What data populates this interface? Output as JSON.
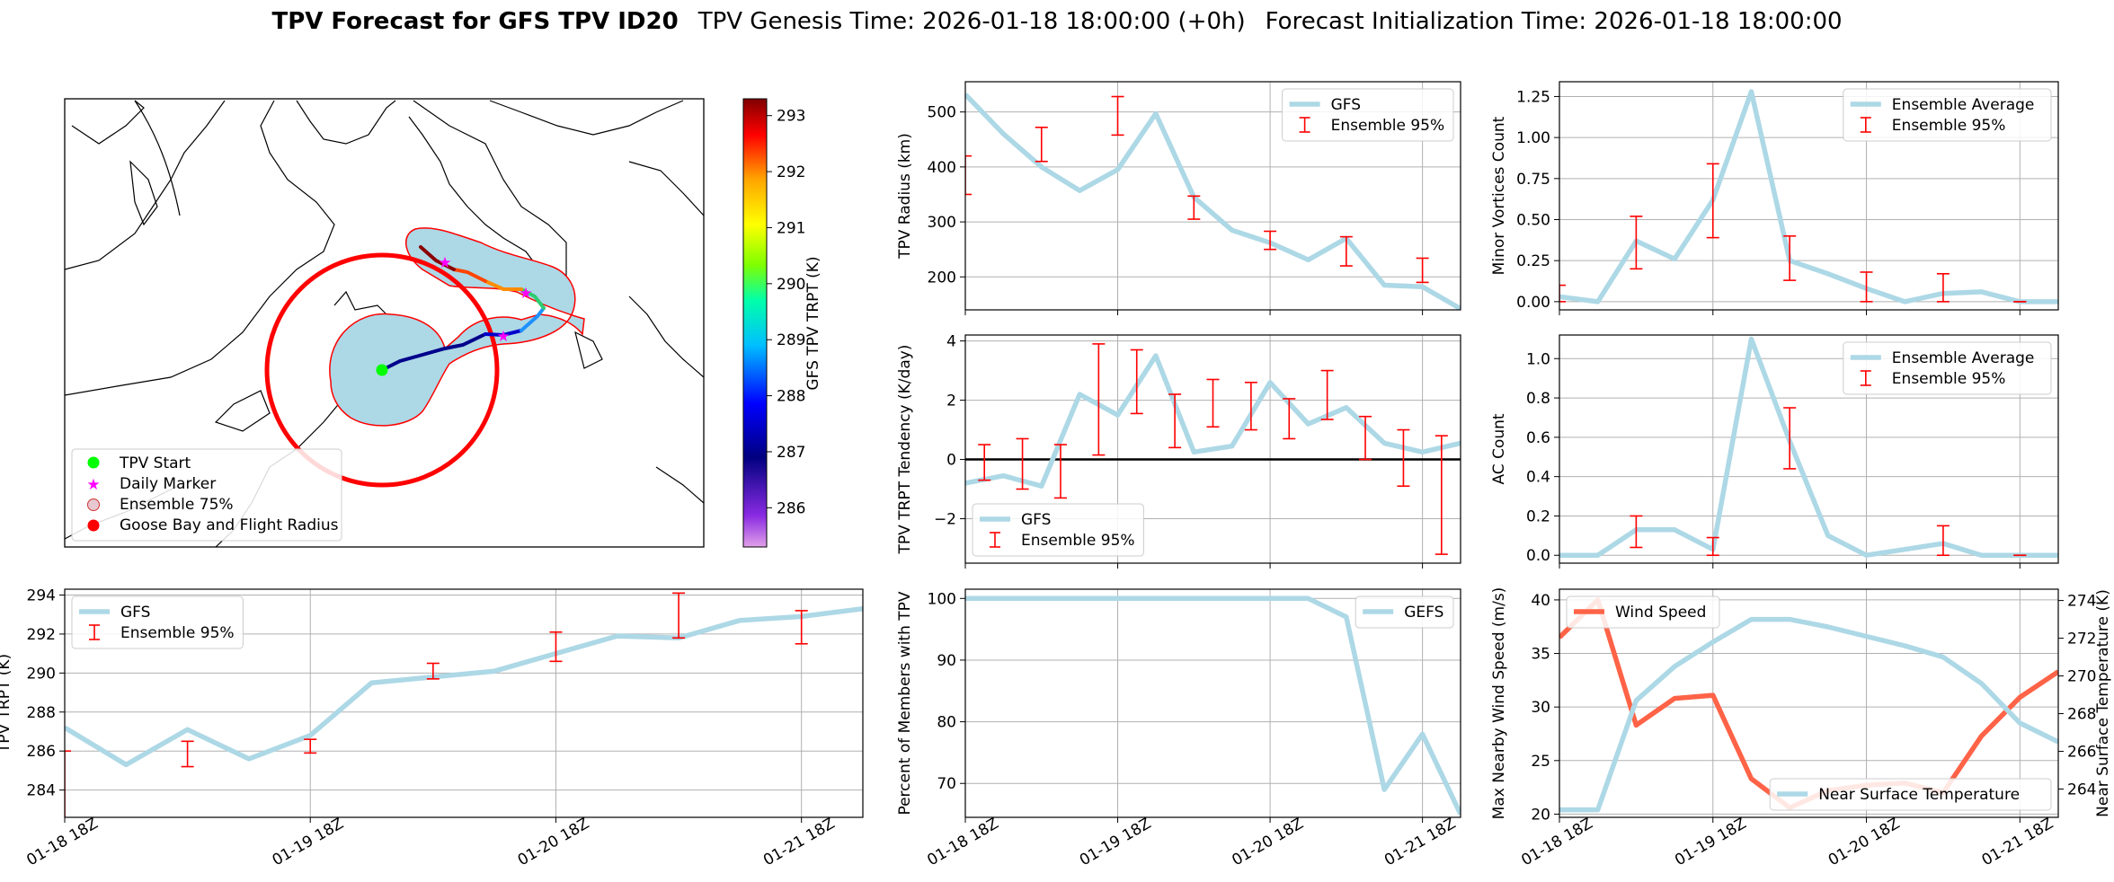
{
  "title": {
    "bold": "TPV Forecast for GFS TPV ID20",
    "genesis": "TPV Genesis Time: 2026-01-18 18:00:00 (+0h)",
    "init": "Forecast Initialization Time: 2026-01-18 18:00:00"
  },
  "colors": {
    "gfs": "#add8e6",
    "ensemble": "#ff0000",
    "wind": "#ff6347",
    "temp_axis": "#4169e1",
    "zero_line": "#000000"
  },
  "time_ticks": [
    "01-18 18Z",
    "01-19 18Z",
    "01-20 18Z",
    "01-21 18Z"
  ],
  "map": {
    "colorbar_label": "GFS TPV TRPT (K)",
    "colorbar_ticks": [
      "293",
      "292",
      "291",
      "290",
      "289",
      "288",
      "287",
      "286"
    ],
    "colorbar_range": [
      285.3,
      293.3
    ],
    "legend": [
      "TPV Start",
      "Daily Marker",
      "Ensemble 75%",
      "Goose Bay and Flight Radius"
    ]
  },
  "chart_data": [
    {
      "id": "trpt",
      "type": "line",
      "ylabel": "TPV TRPT (K)",
      "legend": [
        "GFS",
        "Ensemble 95%"
      ],
      "x": [
        0,
        6,
        12,
        18,
        24,
        30,
        36,
        42,
        48,
        54,
        60,
        66,
        72,
        78
      ],
      "xlim": [
        0,
        78
      ],
      "ylim": [
        282.6,
        294.3
      ],
      "yticks": [
        "284",
        "286",
        "288",
        "290",
        "292",
        "294"
      ],
      "series": [
        {
          "name": "GFS",
          "values": [
            287.2,
            285.3,
            287.1,
            285.6,
            286.8,
            289.5,
            289.8,
            290.1,
            291.0,
            291.9,
            291.8,
            292.7,
            292.9,
            293.3
          ]
        }
      ],
      "ensemble_95": [
        {
          "x": 0,
          "low": 282.5,
          "high": 286.0
        },
        {
          "x": 12,
          "low": 285.2,
          "high": 286.5
        },
        {
          "x": 24,
          "low": 285.9,
          "high": 286.6
        },
        {
          "x": 36,
          "low": 289.7,
          "high": 290.5
        },
        {
          "x": 48,
          "low": 290.6,
          "high": 292.1
        },
        {
          "x": 60,
          "low": 291.8,
          "high": 294.1
        },
        {
          "x": 72,
          "low": 291.5,
          "high": 293.2
        }
      ]
    },
    {
      "id": "radius",
      "type": "line",
      "ylabel": "TPV Radius (km)",
      "legend": [
        "GFS",
        "Ensemble 95%"
      ],
      "x": [
        0,
        6,
        12,
        18,
        24,
        30,
        36,
        42,
        48,
        54,
        60,
        66,
        72,
        78
      ],
      "xlim": [
        0,
        78
      ],
      "ylim": [
        140,
        555
      ],
      "yticks": [
        "200",
        "300",
        "400",
        "500"
      ],
      "series": [
        {
          "name": "GFS",
          "values": [
            532,
            460,
            400,
            357,
            395,
            497,
            345,
            285,
            262,
            231,
            270,
            185,
            182,
            142
          ]
        }
      ],
      "ensemble_95": [
        {
          "x": 0,
          "low": 350,
          "high": 420
        },
        {
          "x": 12,
          "low": 410,
          "high": 472
        },
        {
          "x": 24,
          "low": 458,
          "high": 528
        },
        {
          "x": 36,
          "low": 305,
          "high": 347
        },
        {
          "x": 48,
          "low": 250,
          "high": 283
        },
        {
          "x": 60,
          "low": 220,
          "high": 273
        },
        {
          "x": 72,
          "low": 190,
          "high": 234
        }
      ]
    },
    {
      "id": "tendency",
      "type": "line",
      "ylabel": "TPV TRPT Tendency (K/day)",
      "legend": [
        "GFS",
        "Ensemble 95%"
      ],
      "x": [
        0,
        6,
        12,
        18,
        24,
        30,
        36,
        42,
        48,
        54,
        60,
        66,
        72,
        78
      ],
      "xlim": [
        0,
        78
      ],
      "ylim": [
        -3.5,
        4.2
      ],
      "yticks": [
        "−2",
        "0",
        "2",
        "4"
      ],
      "series": [
        {
          "name": "GFS",
          "values": [
            -0.8,
            -0.55,
            -0.9,
            2.2,
            1.5,
            3.5,
            0.25,
            0.45,
            2.6,
            1.2,
            1.75,
            0.55,
            0.25,
            0.55
          ]
        }
      ],
      "ensemble_95": [
        {
          "x": 3,
          "low": -0.7,
          "high": 0.5
        },
        {
          "x": 9,
          "low": -1.0,
          "high": 0.7
        },
        {
          "x": 15,
          "low": -1.3,
          "high": 0.5
        },
        {
          "x": 21,
          "low": 0.15,
          "high": 3.9
        },
        {
          "x": 27,
          "low": 1.55,
          "high": 3.7
        },
        {
          "x": 33,
          "low": 0.4,
          "high": 2.2
        },
        {
          "x": 39,
          "low": 1.1,
          "high": 2.7
        },
        {
          "x": 45,
          "low": 1.0,
          "high": 2.6
        },
        {
          "x": 51,
          "low": 0.7,
          "high": 2.05
        },
        {
          "x": 57,
          "low": 1.35,
          "high": 3.0
        },
        {
          "x": 63,
          "low": 0.0,
          "high": 1.45
        },
        {
          "x": 69,
          "low": -0.9,
          "high": 1.0
        },
        {
          "x": 75,
          "low": -3.2,
          "high": 0.8
        }
      ]
    },
    {
      "id": "minor",
      "type": "line",
      "ylabel": "Minor Vortices Count",
      "legend": [
        "Ensemble Average",
        "Ensemble 95%"
      ],
      "x": [
        0,
        6,
        12,
        18,
        24,
        30,
        36,
        42,
        48,
        54,
        60,
        66,
        72,
        78
      ],
      "xlim": [
        0,
        78
      ],
      "ylim": [
        -0.05,
        1.34
      ],
      "yticks": [
        "0.00",
        "0.25",
        "0.50",
        "0.75",
        "1.00",
        "1.25"
      ],
      "series": [
        {
          "name": "Ensemble Average",
          "values": [
            0.03,
            0.0,
            0.37,
            0.26,
            0.62,
            1.28,
            0.25,
            0.17,
            0.08,
            0.0,
            0.05,
            0.06,
            0.0,
            0.0
          ]
        }
      ],
      "ensemble_95": [
        {
          "x": 0,
          "low": 0.0,
          "high": 0.1
        },
        {
          "x": 12,
          "low": 0.2,
          "high": 0.52
        },
        {
          "x": 24,
          "low": 0.39,
          "high": 0.84
        },
        {
          "x": 36,
          "low": 0.13,
          "high": 0.4
        },
        {
          "x": 48,
          "low": 0.0,
          "high": 0.18
        },
        {
          "x": 60,
          "low": 0.0,
          "high": 0.17
        },
        {
          "x": 72,
          "low": 0.0,
          "high": 0.0
        }
      ]
    },
    {
      "id": "ac",
      "type": "line",
      "ylabel": "AC Count",
      "legend": [
        "Ensemble Average",
        "Ensemble 95%"
      ],
      "x": [
        0,
        6,
        12,
        18,
        24,
        30,
        36,
        42,
        48,
        54,
        60,
        66,
        72,
        78
      ],
      "xlim": [
        0,
        78
      ],
      "ylim": [
        -0.04,
        1.12
      ],
      "yticks": [
        "0.0",
        "0.2",
        "0.4",
        "0.6",
        "0.8",
        "1.0"
      ],
      "series": [
        {
          "name": "Ensemble Average",
          "values": [
            0.0,
            0.0,
            0.13,
            0.13,
            0.03,
            1.1,
            0.58,
            0.1,
            0.0,
            0.03,
            0.06,
            0.0,
            0.0,
            0.0
          ]
        }
      ],
      "ensemble_95": [
        {
          "x": 12,
          "low": 0.04,
          "high": 0.2
        },
        {
          "x": 24,
          "low": 0.0,
          "high": 0.09
        },
        {
          "x": 36,
          "low": 0.44,
          "high": 0.75
        },
        {
          "x": 60,
          "low": 0.0,
          "high": 0.15
        },
        {
          "x": 72,
          "low": 0.0,
          "high": 0.0
        }
      ]
    },
    {
      "id": "percent",
      "type": "line",
      "ylabel": "Percent of Members with TPV",
      "legend": [
        "GEFS"
      ],
      "x": [
        0,
        6,
        12,
        18,
        24,
        30,
        36,
        42,
        48,
        54,
        60,
        66,
        72,
        78
      ],
      "xlim": [
        0,
        78
      ],
      "ylim": [
        64.5,
        101.5
      ],
      "yticks": [
        "70",
        "80",
        "90",
        "100"
      ],
      "series": [
        {
          "name": "GEFS",
          "values": [
            100,
            100,
            100,
            100,
            100,
            100,
            100,
            100,
            100,
            100,
            97,
            69,
            78,
            65
          ]
        }
      ],
      "ensemble_95": []
    },
    {
      "id": "wind",
      "type": "line",
      "ylabel": "Max Nearby Wind Speed (m/s)",
      "ylabel_right": "Near Surface Temperature (K)",
      "legend": [
        "Wind Speed",
        "Near Surface Temperature"
      ],
      "x": [
        0,
        6,
        12,
        18,
        24,
        30,
        36,
        42,
        48,
        54,
        60,
        66,
        72,
        78
      ],
      "xlim": [
        0,
        78
      ],
      "ylim": [
        19.7,
        41
      ],
      "ylim_right": [
        262.5,
        274.6
      ],
      "yticks": [
        "20",
        "25",
        "30",
        "35",
        "40"
      ],
      "yticks_right": [
        "264",
        "266",
        "268",
        "270",
        "272",
        "274"
      ],
      "series": [
        {
          "name": "Wind Speed",
          "values": [
            36.5,
            40.0,
            28.3,
            30.8,
            31.1,
            23.3,
            20.6,
            22.2,
            22.7,
            22.9,
            22.0,
            27.3,
            30.9,
            33.3
          ]
        },
        {
          "name": "Near Surface Temperature",
          "values": [
            262.9,
            262.9,
            268.7,
            270.5,
            271.8,
            273.0,
            273.0,
            272.6,
            272.1,
            271.6,
            271.0,
            269.6,
            267.5,
            266.5
          ]
        }
      ],
      "ensemble_95": []
    }
  ]
}
